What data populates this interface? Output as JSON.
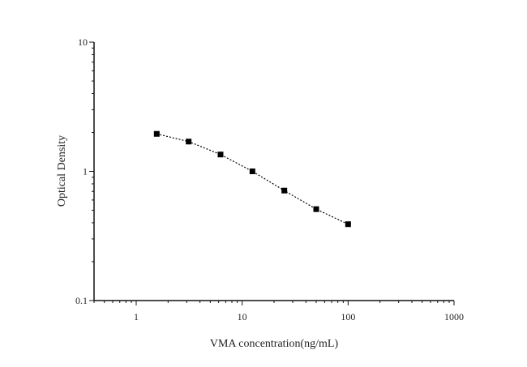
{
  "chart_data": {
    "type": "scatter",
    "title": "",
    "xlabel": "VMA concentration(ng/mL)",
    "ylabel": "Optical Density",
    "xscale": "log",
    "yscale": "log",
    "xlim": [
      0.4,
      1000
    ],
    "ylim": [
      0.1,
      10
    ],
    "xticks": [
      1,
      10,
      100,
      1000
    ],
    "xtick_labels": [
      "1",
      "10",
      "100",
      "1000"
    ],
    "yticks": [
      0.1,
      1,
      10
    ],
    "ytick_labels": [
      "0.1",
      "1",
      "10"
    ],
    "grid": false,
    "legend": "none",
    "line_style": "dotted",
    "marker": "square",
    "color": "#000000",
    "series": [
      {
        "x": [
          1.5625,
          3.125,
          6.25,
          12.5,
          25,
          50,
          100
        ],
        "y": [
          1.95,
          1.7,
          1.35,
          1.0,
          0.71,
          0.51,
          0.39
        ]
      }
    ]
  }
}
